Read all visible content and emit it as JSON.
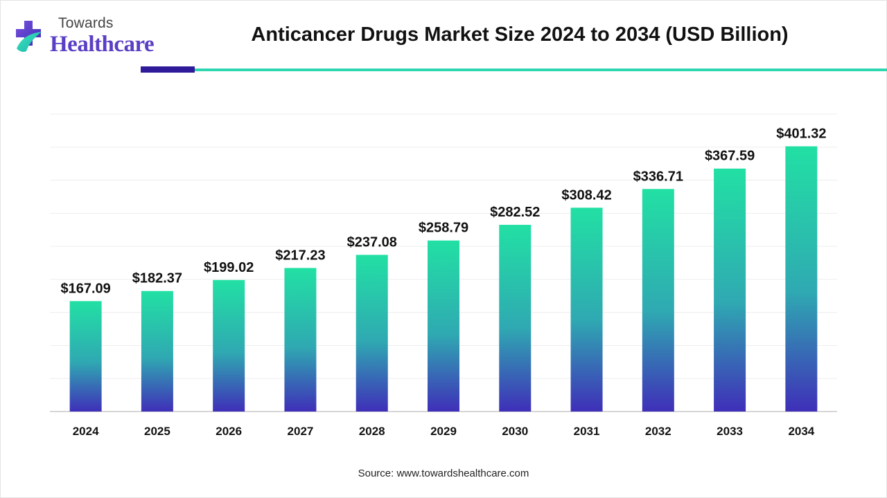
{
  "logo": {
    "line1": "Towards",
    "line2": "Healthcare"
  },
  "title": "Anticancer Drugs Market Size 2024 to 2034 (USD Billion)",
  "source": "Source: www.towardshealthcare.com",
  "colors": {
    "bar_top": "#22e0a4",
    "bar_mid": "#2fa9b2",
    "bar_bottom": "#3f2fb8",
    "accent_dark": "#2f1a99",
    "accent_teal": "#2ed6b0"
  },
  "chart_data": {
    "type": "bar",
    "categories": [
      "2024",
      "2025",
      "2026",
      "2027",
      "2028",
      "2029",
      "2030",
      "2031",
      "2032",
      "2033",
      "2034"
    ],
    "values": [
      167.09,
      182.37,
      199.02,
      217.23,
      237.08,
      258.79,
      282.52,
      308.42,
      336.71,
      367.59,
      401.32
    ],
    "data_labels": [
      "$167.09",
      "$182.37",
      "$199.02",
      "$217.23",
      "$237.08",
      "$258.79",
      "$282.52",
      "$308.42",
      "$336.71",
      "$367.59",
      "$401.32"
    ],
    "ylim": [
      0,
      450
    ],
    "grid": true,
    "legend": "none"
  }
}
